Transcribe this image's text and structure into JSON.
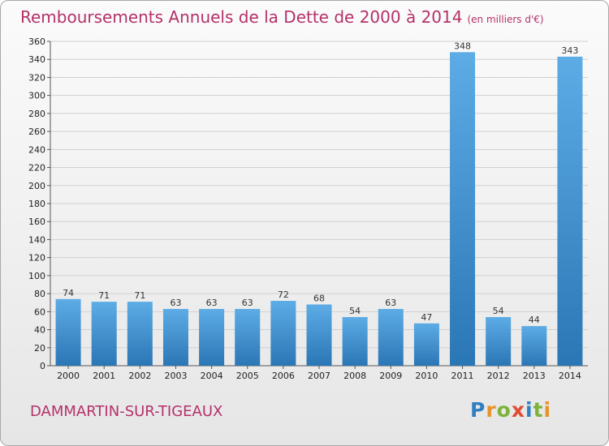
{
  "header": {
    "title": "Remboursements Annuels de la Dette de 2000 à 2014",
    "unit": "(en milliers d'€)"
  },
  "footer": {
    "city": "DAMMARTIN-SUR-TIGEAUX",
    "logo": {
      "letters": [
        "P",
        "r",
        "o",
        "x",
        "i",
        "t",
        "i"
      ],
      "colors": [
        "#2f7fc1",
        "#e8932a",
        "#7bb33b",
        "#e24a33",
        "#2f7fc1",
        "#7bb33b",
        "#e8932a"
      ]
    }
  },
  "colors": {
    "bar_light": "#5dace6",
    "bar_dark": "#2b76b5",
    "title": "#b4316a",
    "grid": "#d0d0d0"
  },
  "chart_data": {
    "type": "bar",
    "title": "Remboursements Annuels de la Dette de 2000 à 2014",
    "subtitle": "(en milliers d'€)",
    "xlabel": "",
    "ylabel": "",
    "categories": [
      "2000",
      "2001",
      "2002",
      "2003",
      "2004",
      "2005",
      "2006",
      "2007",
      "2008",
      "2009",
      "2010",
      "2011",
      "2012",
      "2013",
      "2014"
    ],
    "values": [
      74,
      71,
      71,
      63,
      63,
      63,
      72,
      68,
      54,
      63,
      47,
      348,
      54,
      44,
      343
    ],
    "ylim": [
      0,
      360
    ],
    "yticks": [
      0,
      20,
      40,
      60,
      80,
      100,
      120,
      140,
      160,
      180,
      200,
      220,
      240,
      260,
      280,
      300,
      320,
      340,
      360
    ],
    "grid": true,
    "data_labels": true
  }
}
